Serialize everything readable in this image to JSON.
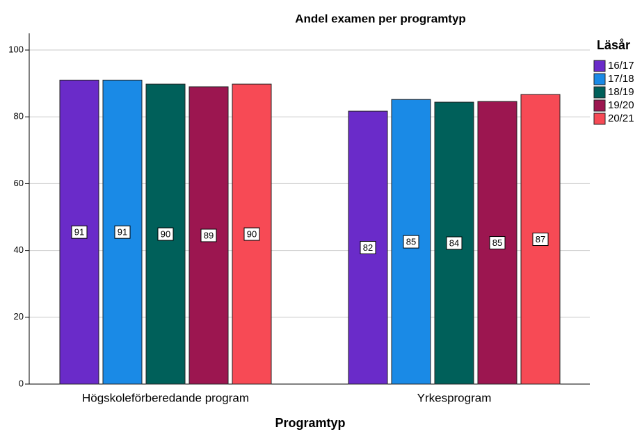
{
  "chart_data": {
    "type": "bar",
    "title": "Andel examen per programtyp",
    "x_label": "Programtyp",
    "legend_title": "Läsår",
    "categories": [
      "Högskoleförberedande program",
      "Yrkesprogram"
    ],
    "series": [
      {
        "name": "16/17",
        "color": "#6a2bc9",
        "values": [
          91.0,
          81.7
        ],
        "value_labels": [
          "91",
          "82"
        ]
      },
      {
        "name": "17/18",
        "color": "#1a8ae6",
        "values": [
          91.0,
          85.2
        ],
        "value_labels": [
          "91",
          "85"
        ]
      },
      {
        "name": "18/19",
        "color": "#00605a",
        "values": [
          89.8,
          84.4
        ],
        "value_labels": [
          "90",
          "84"
        ]
      },
      {
        "name": "19/20",
        "color": "#9c1650",
        "values": [
          89.0,
          84.6
        ],
        "value_labels": [
          "89",
          "85"
        ]
      },
      {
        "name": "20/21",
        "color": "#f74a55",
        "values": [
          89.8,
          86.7
        ],
        "value_labels": [
          "90",
          "87"
        ]
      }
    ],
    "ylim": [
      0,
      105
    ],
    "yticks": [
      0,
      20,
      40,
      60,
      80,
      100
    ],
    "grid": true,
    "legend_position": "right"
  }
}
